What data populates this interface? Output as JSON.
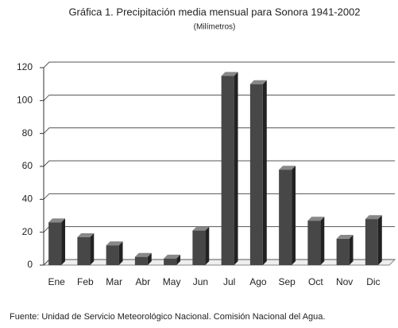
{
  "chart_data": {
    "type": "bar",
    "title": "Gráfica 1. Precipitación media mensual para Sonora 1941-2002",
    "subtitle": "(Milímetros)",
    "source": "Fuente: Unidad de Servicio Meteorológico Nacional. Comisión Nacional del Agua.",
    "categories": [
      "Ene",
      "Feb",
      "Mar",
      "Abr",
      "May",
      "Jun",
      "Jul",
      "Ago",
      "Sep",
      "Oct",
      "Nov",
      "Dic"
    ],
    "values": [
      26,
      17,
      12,
      5,
      4,
      21,
      115,
      110,
      58,
      27,
      16,
      28
    ],
    "color": "#474747",
    "ylim": [
      0,
      120
    ],
    "yticks": [
      0,
      20,
      40,
      60,
      80,
      100,
      120
    ],
    "grid": true
  }
}
